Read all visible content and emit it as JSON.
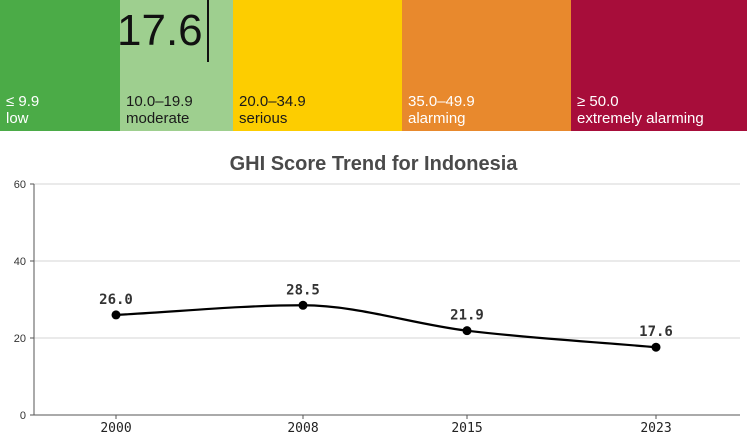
{
  "scale": {
    "segments": [
      {
        "range": "≤ 9.9",
        "category": "low",
        "color": "#4bab47",
        "cls": ""
      },
      {
        "range": "10.0–19.9",
        "category": "moderate",
        "color": "#9ecf8f",
        "cls": "light"
      },
      {
        "range": "20.0–34.9",
        "category": "serious",
        "color": "#fdcd00",
        "cls": "yellow"
      },
      {
        "range": "35.0–49.9",
        "category": "alarming",
        "color": "#e8892d",
        "cls": ""
      },
      {
        "range": "≥ 50.0",
        "category": "extremely alarming",
        "color": "#a70d3a",
        "cls": ""
      }
    ],
    "current_score": "17.6"
  },
  "chart_data": {
    "type": "line",
    "title": "GHI Score Trend for Indonesia",
    "xlabel": "",
    "ylabel": "",
    "categories": [
      "2000",
      "2008",
      "2015",
      "2023"
    ],
    "series": [
      {
        "values": [
          26.0,
          28.5,
          21.9,
          17.6
        ],
        "labels": [
          "26.0",
          "28.5",
          "21.9",
          "17.6"
        ]
      }
    ],
    "ylim": [
      0,
      60
    ],
    "yticks": [
      "0",
      "20",
      "40",
      "60"
    ],
    "grid": true,
    "smooth": true,
    "line_color": "#000000"
  }
}
